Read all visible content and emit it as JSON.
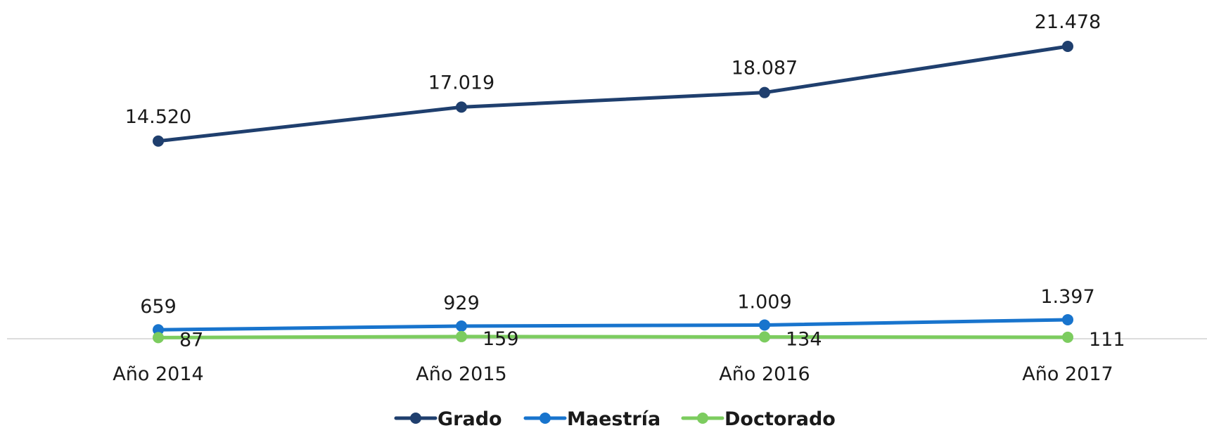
{
  "chart_data": {
    "type": "line",
    "categories": [
      "Año 2014",
      "Año 2015",
      "Año 2016",
      "Año 2017"
    ],
    "series": [
      {
        "name": "Grado",
        "color": "#1f3f6e",
        "values": [
          14520,
          17019,
          18087,
          21478
        ],
        "labels": [
          "14.520",
          "17.019",
          "18.087",
          "21.478"
        ]
      },
      {
        "name": "Maestría",
        "color": "#1874cd",
        "values": [
          659,
          929,
          1009,
          1397
        ],
        "labels": [
          "659",
          "929",
          "1.009",
          "1.397"
        ]
      },
      {
        "name": "Doctorado",
        "color": "#7ccc5f",
        "values": [
          87,
          159,
          134,
          111
        ],
        "labels": [
          "87",
          "159",
          "134",
          "111"
        ]
      }
    ],
    "ylim": [
      0,
      21478
    ],
    "grid": false,
    "legend": "bottom",
    "title": "",
    "xlabel": "",
    "ylabel": ""
  }
}
